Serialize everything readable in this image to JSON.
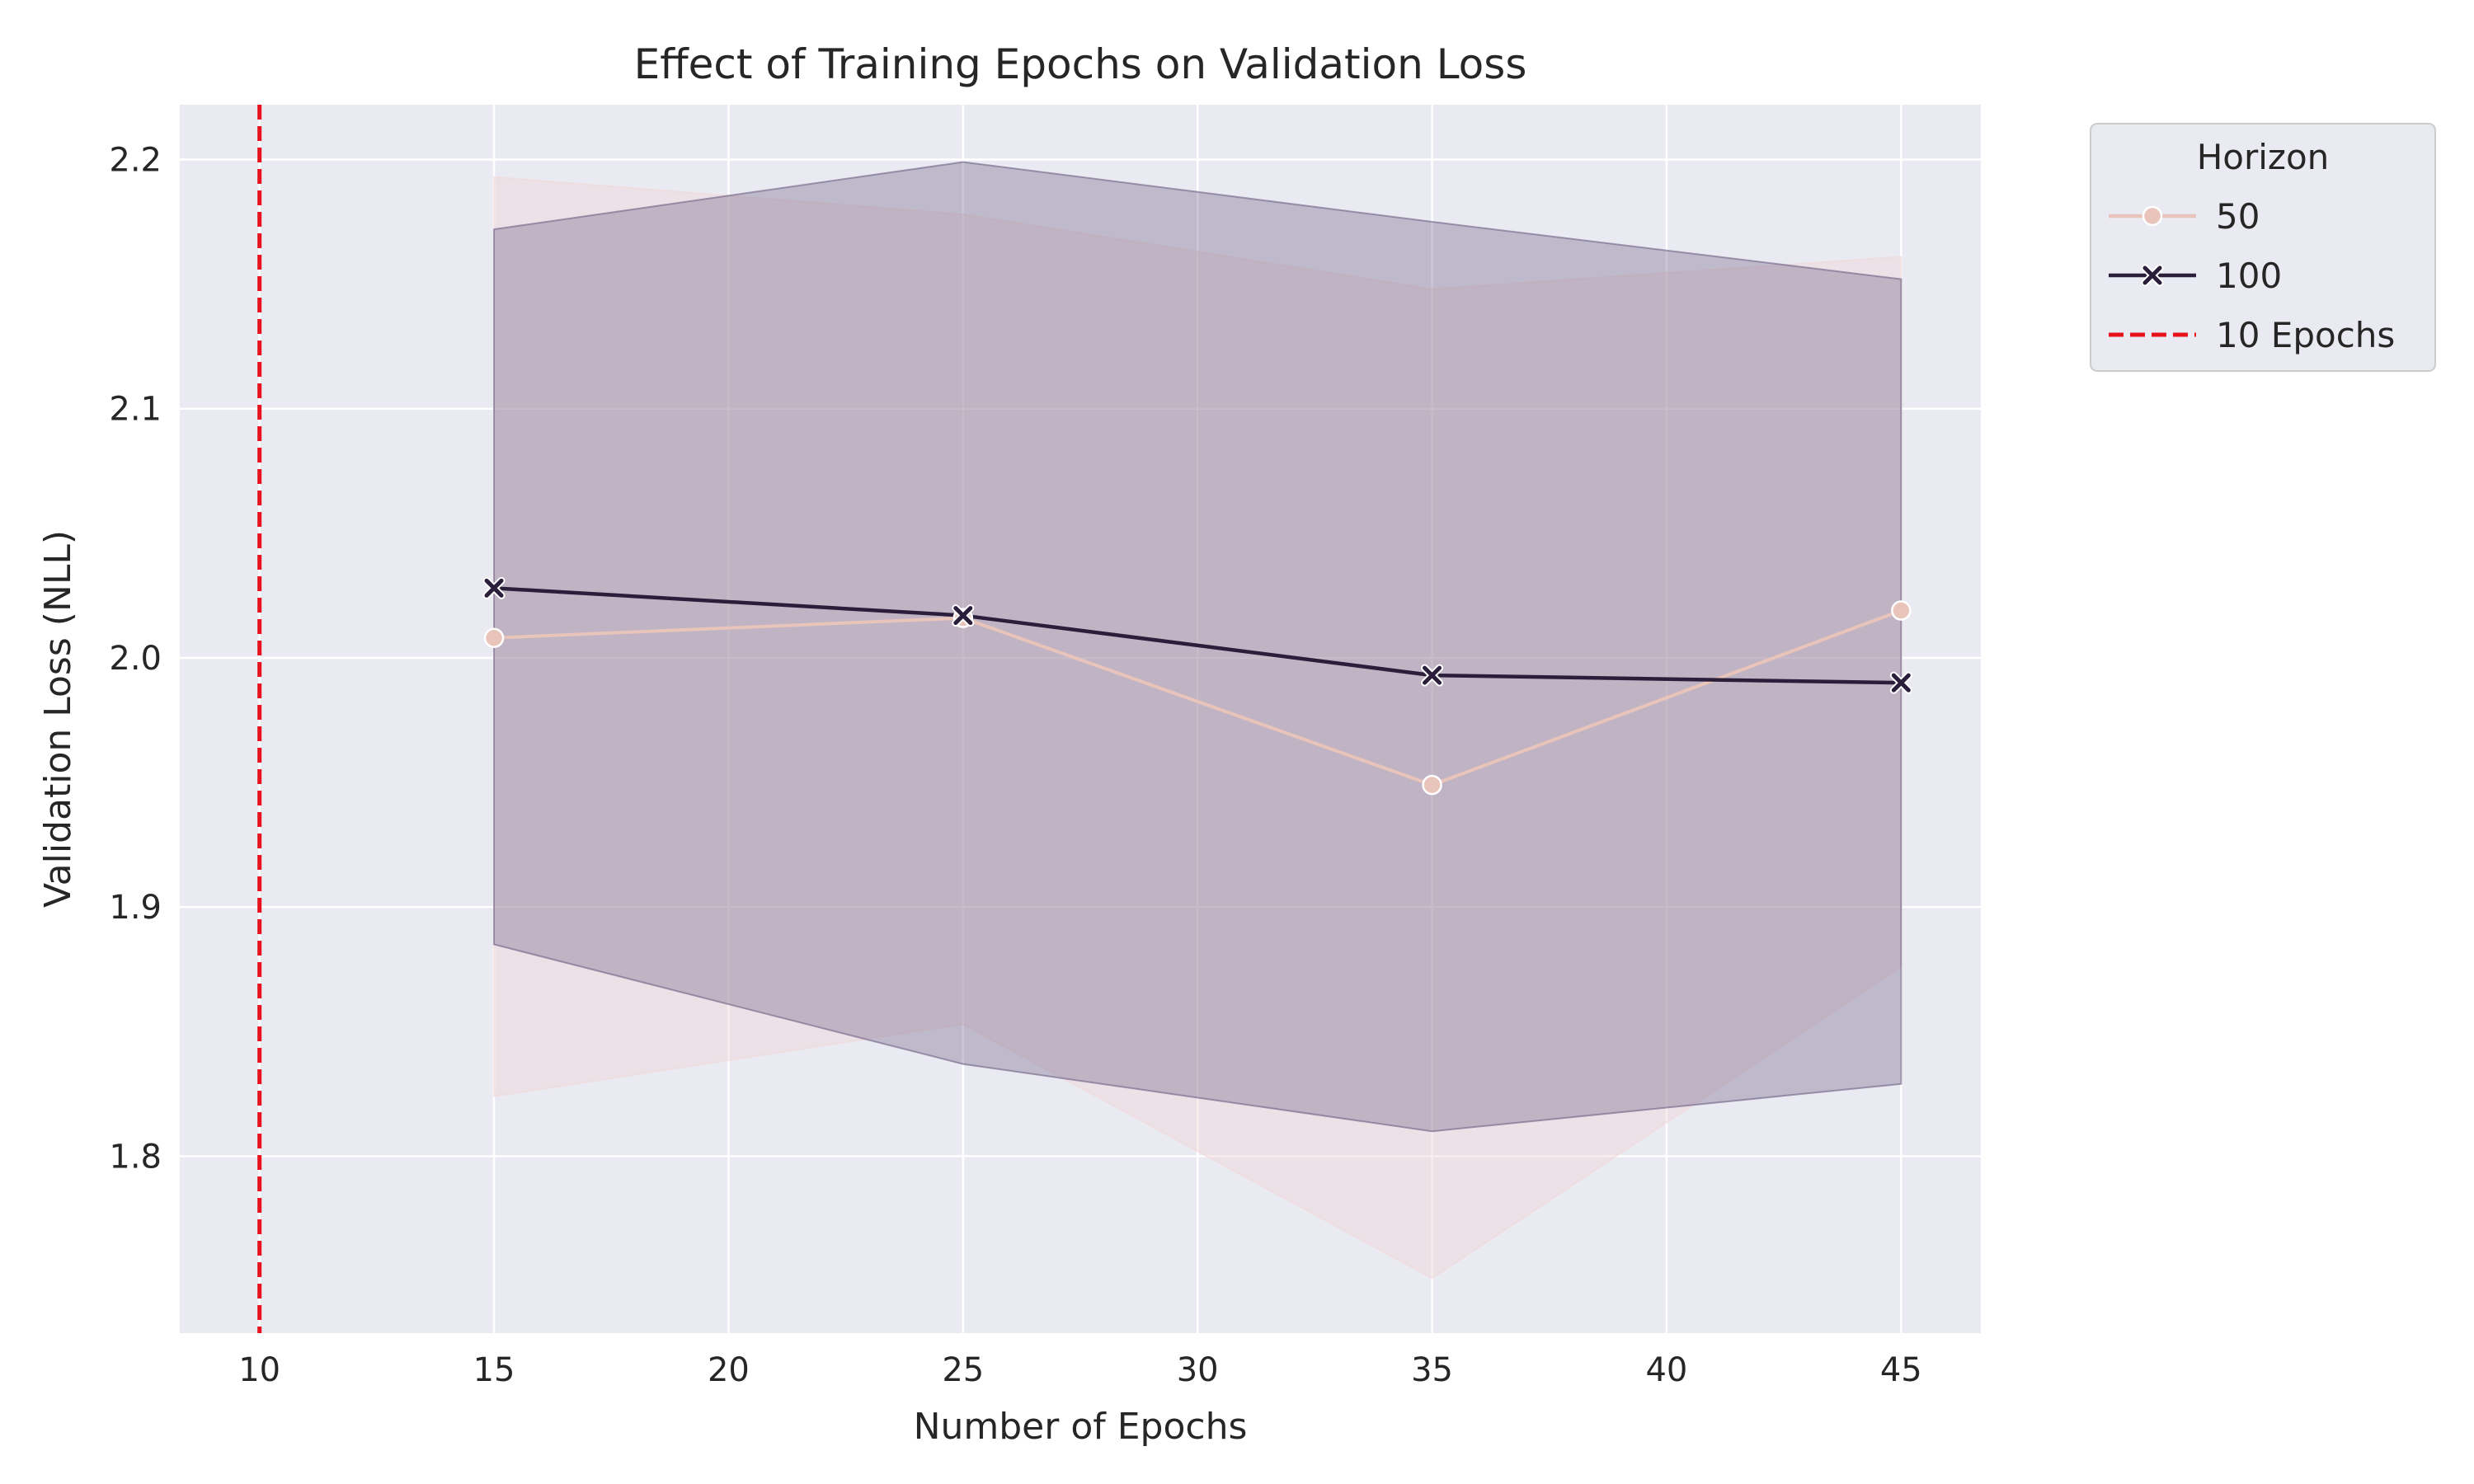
{
  "chart_data": {
    "type": "line",
    "title": "Effect of Training Epochs on Validation Loss",
    "xlabel": "Number of Epochs",
    "ylabel": "Validation Loss (NLL)",
    "xlim": [
      8.3,
      46.7
    ],
    "ylim": [
      1.729,
      2.222
    ],
    "x_ticks": [
      10,
      15,
      20,
      25,
      30,
      35,
      40,
      45
    ],
    "y_ticks": [
      1.8,
      1.9,
      2.0,
      2.1,
      2.2
    ],
    "x_tick_labels": [
      "10",
      "15",
      "20",
      "25",
      "30",
      "35",
      "40",
      "45"
    ],
    "y_tick_labels": [
      "1.8",
      "1.9",
      "2.0",
      "2.1",
      "2.2"
    ],
    "grid": true,
    "legend": {
      "title": "Horizon",
      "position": "outside-top-right"
    },
    "series": [
      {
        "name": "50",
        "color": "#e8c4ba",
        "marker": "circle",
        "x": [
          15,
          25,
          35,
          45
        ],
        "y": [
          2.008,
          2.016,
          1.949,
          2.019
        ],
        "ci_lower": [
          1.824,
          1.853,
          1.751,
          1.876
        ],
        "ci_upper": [
          2.193,
          2.178,
          2.148,
          2.161
        ],
        "band_color": "#f0d8d8"
      },
      {
        "name": "100",
        "color": "#2a1e3a",
        "marker": "x",
        "x": [
          15,
          25,
          35,
          45
        ],
        "y": [
          2.028,
          2.017,
          1.993,
          1.99
        ],
        "ci_lower": [
          1.885,
          1.837,
          1.81,
          1.829
        ],
        "ci_upper": [
          2.172,
          2.199,
          2.175,
          2.152
        ],
        "band_color": "#6e5f84"
      }
    ],
    "reference_lines": [
      {
        "name": "10 Epochs",
        "x": 10,
        "color": "#e8121c",
        "style": "dashed"
      }
    ]
  }
}
